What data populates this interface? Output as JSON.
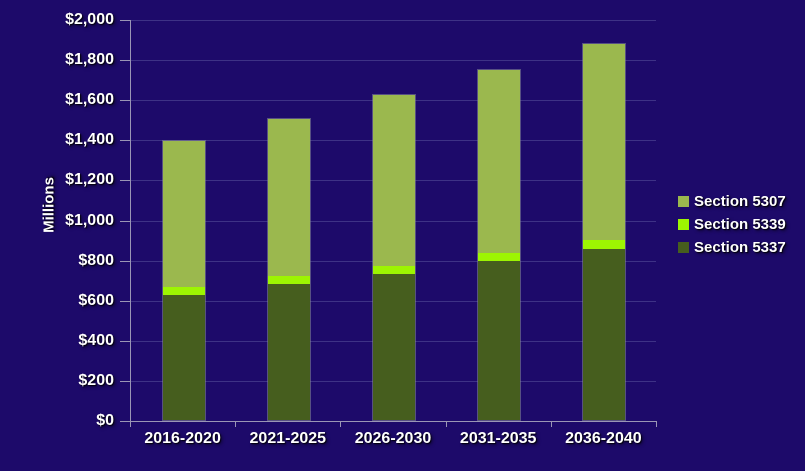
{
  "colors": {
    "background": "#1d0a6a",
    "gridline": "#3e3286",
    "axis": "#9a96b5",
    "text": "#ffffff"
  },
  "chart_data": {
    "type": "bar",
    "stacked": true,
    "title": "",
    "ylabel": "Millions",
    "xlabel": "",
    "ylim": [
      0,
      2000
    ],
    "grid": true,
    "legend_position": "right",
    "categories": [
      "2016-2020",
      "2021-2025",
      "2026-2030",
      "2031-2035",
      "2036-2040"
    ],
    "series": [
      {
        "name": "Section 5337",
        "color": "#465e1e",
        "values": [
          625,
          680,
          730,
          795,
          855
        ]
      },
      {
        "name": "Section 5339",
        "color": "#9df502",
        "values": [
          40,
          40,
          40,
          40,
          45
        ]
      },
      {
        "name": "Section 5307",
        "color": "#9bb84e",
        "values": [
          725,
          780,
          850,
          910,
          975
        ]
      }
    ],
    "totals": [
      1390,
      1500,
      1620,
      1745,
      1875
    ],
    "yticks": [
      {
        "value": 0,
        "label": "$0"
      },
      {
        "value": 200,
        "label": "$200"
      },
      {
        "value": 400,
        "label": "$400"
      },
      {
        "value": 600,
        "label": "$600"
      },
      {
        "value": 800,
        "label": "$800"
      },
      {
        "value": 1000,
        "label": "$1,000"
      },
      {
        "value": 1200,
        "label": "$1,200"
      },
      {
        "value": 1400,
        "label": "$1,400"
      },
      {
        "value": 1600,
        "label": "$1,600"
      },
      {
        "value": 1800,
        "label": "$1,800"
      },
      {
        "value": 2000,
        "label": "$2,000"
      }
    ],
    "legend_items": [
      "Section 5307",
      "Section 5339",
      "Section 5337"
    ]
  }
}
